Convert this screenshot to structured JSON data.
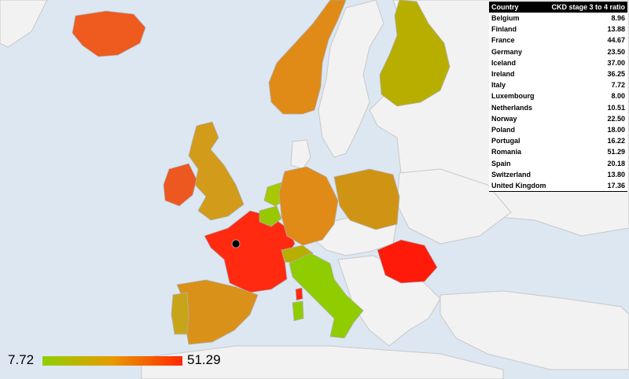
{
  "legend": {
    "min_label": "7.72",
    "max_label": "51.29",
    "gradient": [
      "#8fd000",
      "#e89a00",
      "#ff2a00"
    ]
  },
  "table": {
    "header": {
      "country": "Country",
      "value": "CKD stage 3 to 4 ratio"
    },
    "rows": [
      {
        "country": "Belgium",
        "value": "8.96"
      },
      {
        "country": "Finland",
        "value": "13.88"
      },
      {
        "country": "France",
        "value": "44.67"
      },
      {
        "country": "Germany",
        "value": "23.50"
      },
      {
        "country": "Iceland",
        "value": "37.00"
      },
      {
        "country": "Ireland",
        "value": "36.25"
      },
      {
        "country": "Italy",
        "value": "7.72"
      },
      {
        "country": "Luxembourg",
        "value": "8.00"
      },
      {
        "country": "Netherlands",
        "value": "10.51"
      },
      {
        "country": "Norway",
        "value": "22.50"
      },
      {
        "country": "Poland",
        "value": "18.00"
      },
      {
        "country": "Portugal",
        "value": "16.22"
      },
      {
        "country": "Romania",
        "value": "51.29"
      },
      {
        "country": "Spain",
        "value": "20.18"
      },
      {
        "country": "Switzerland",
        "value": "13.80"
      },
      {
        "country": "United Kingdom",
        "value": "17.36"
      }
    ]
  },
  "colors": {
    "sea": "#dde7f2",
    "land_nodata": "#f2f2f2",
    "border": "#c8c8c8"
  }
}
